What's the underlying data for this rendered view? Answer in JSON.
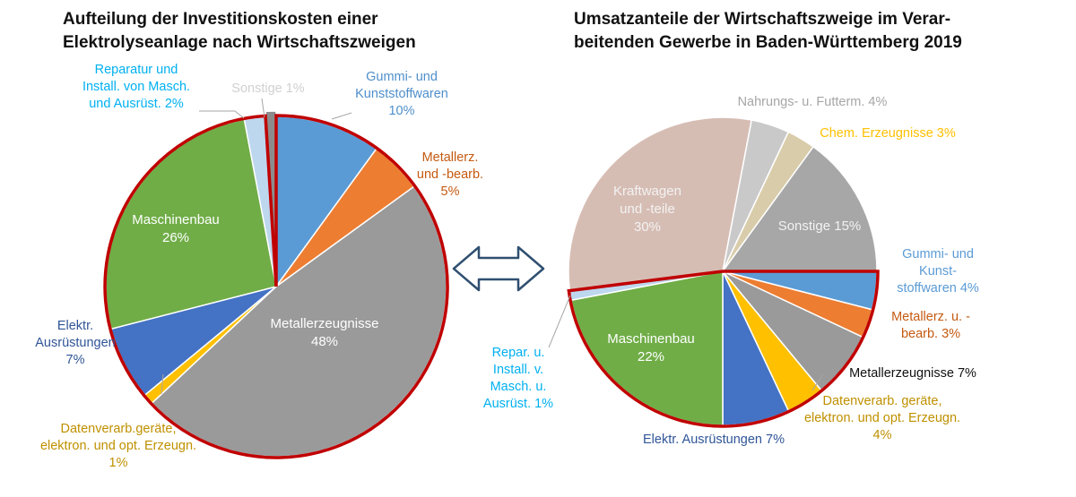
{
  "colors": {
    "green": "#70ad47",
    "grey": "#9a9a9a",
    "blue": "#5b9bd5",
    "orange": "#ed7d31",
    "darkblue": "#4472c4",
    "yellow": "#ffc000",
    "lightblue": "#bdd7ee",
    "darkgrey": "#8c8c8c",
    "red": "#c00000",
    "taupe": "#d6bdb4",
    "lightgrey": "#c9c9c9",
    "beige": "#d9ccaa",
    "medgrey": "#a7a7a7",
    "arrow": "#2f4f70"
  },
  "chart_data": [
    {
      "type": "pie",
      "title_lines": [
        "Aufteilung der Investitionskosten einer",
        "Elektrolyseanlage nach Wirtschaftszweigen"
      ],
      "slices": [
        {
          "label": "Gummi- und Kunststoffwaren 10%",
          "lines": [
            "Gummi- und",
            "Kunststoffwaren",
            "10%"
          ],
          "value": 10,
          "color": "#5b9bd5",
          "label_color": "#4f8fcb"
        },
        {
          "label": "Metallerz. und -bearb. 5%",
          "lines": [
            "Metallerz.",
            "und -bearb.",
            "5%"
          ],
          "value": 5,
          "color": "#ed7d31",
          "label_color": "#c55a11"
        },
        {
          "label": "Metallerzeugnisse 48%",
          "lines": [
            "Metallerzeugnisse",
            "48%"
          ],
          "value": 48,
          "color": "#9a9a9a",
          "label_color": "#ffffff"
        },
        {
          "label": "Datenverarb.geräte, elektron. und opt. Erzeugn. 1%",
          "lines": [
            "Datenverarb.geräte,",
            "elektron. und opt. Erzeugn.",
            "1%"
          ],
          "value": 1,
          "color": "#ffc000",
          "label_color": "#bf9000"
        },
        {
          "label": "Elektr. Ausrüstungen 7%",
          "lines": [
            "Elektr.",
            "Ausrüstungen",
            "7%"
          ],
          "value": 7,
          "color": "#4472c4",
          "label_color": "#2f5597"
        },
        {
          "label": "Maschinenbau 26%",
          "lines": [
            "Maschinenbau",
            "26%"
          ],
          "value": 26,
          "color": "#70ad47",
          "label_color": "#ffffff"
        },
        {
          "label": "Reparatur und Install. von Masch. und Ausrüst. 2%",
          "lines": [
            "Reparatur und",
            "Install. von Masch.",
            "und Ausrüst. 2%"
          ],
          "value": 2,
          "color": "#bdd7ee",
          "label_color": "#00b0f0"
        },
        {
          "label": "Sonstige 1%",
          "lines": [
            "Sonstige 1%"
          ],
          "value": 1,
          "color": "#8c8c8c",
          "label_color": "#d0d0d0"
        }
      ]
    },
    {
      "type": "pie",
      "title_lines": [
        "Umsatzanteile der Wirtschaftszweige im Verar-",
        "beitenden Gewerbe in Baden-Württemberg 2019"
      ],
      "slices": [
        {
          "label": "Gummi- und Kunststoffwaren 4%",
          "lines": [
            "Gummi- und",
            "Kunst-",
            "stoffwaren 4%"
          ],
          "value": 4,
          "color": "#5b9bd5",
          "label_color": "#5b9bd5"
        },
        {
          "label": "Metallerz. u. -bearb. 3%",
          "lines": [
            "Metallerz. u. -",
            "bearb. 3%"
          ],
          "value": 3,
          "color": "#ed7d31",
          "label_color": "#c55a11"
        },
        {
          "label": "Metallerzeugnisse 7%",
          "lines": [
            "Metallerzeugnisse 7%"
          ],
          "value": 7,
          "color": "#9a9a9a",
          "label_color": "#111111"
        },
        {
          "label": "Datenverarb. geräte, elektron. und opt. Erzeugn. 4%",
          "lines": [
            "Datenverarb. geräte,",
            "elektron. und opt. Erzeugn.",
            "4%"
          ],
          "value": 4,
          "color": "#ffc000",
          "label_color": "#bf9000"
        },
        {
          "label": "Elektr. Ausrüstungen 7%",
          "lines": [
            "Elektr. Ausrüstungen 7%"
          ],
          "value": 7,
          "color": "#4472c4",
          "label_color": "#2f5597"
        },
        {
          "label": "Maschinenbau 22%",
          "lines": [
            "Maschinenbau",
            "22%"
          ],
          "value": 22,
          "color": "#70ad47",
          "label_color": "#ffffff"
        },
        {
          "label": "Repar. u. Install. v. Masch. u. Ausrüst. 1%",
          "lines": [
            "Repar. u.",
            "Install. v.",
            "Masch. u.",
            "Ausrüst. 1%"
          ],
          "value": 1,
          "color": "#bdd7ee",
          "label_color": "#00b0f0"
        },
        {
          "label": "Kraftwagen und -teile 30%",
          "lines": [
            "Kraftwagen",
            "und -teile",
            "30%"
          ],
          "value": 30,
          "color": "#d6bdb4",
          "label_color": "#f2f2f2"
        },
        {
          "label": "Nahrungs- u. Futterm. 4%",
          "lines": [
            "Nahrungs- u. Futterm. 4%"
          ],
          "value": 4,
          "color": "#c9c9c9",
          "label_color": "#a6a6a6"
        },
        {
          "label": "Chem. Erzeugnisse 3%",
          "lines": [
            "Chem. Erzeugnisse 3%"
          ],
          "value": 3,
          "color": "#d9ccaa",
          "label_color": "#ffc000"
        },
        {
          "label": "Sonstige 15%",
          "lines": [
            "Sonstige 15%"
          ],
          "value": 15,
          "color": "#a7a7a7",
          "label_color": "#f2f2f2"
        }
      ]
    }
  ]
}
